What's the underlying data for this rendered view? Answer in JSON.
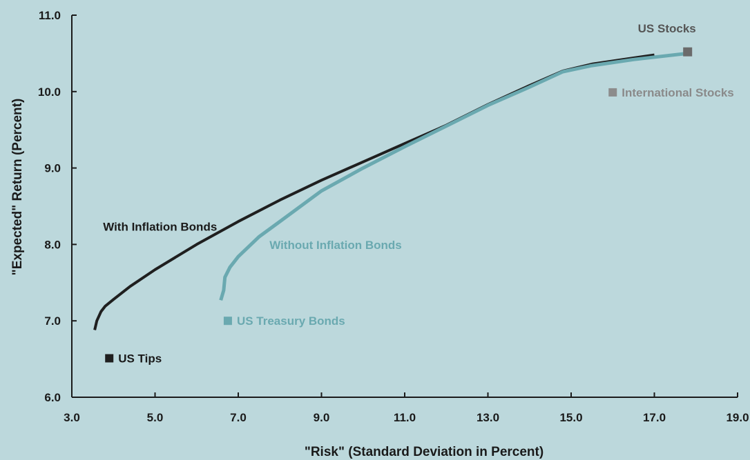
{
  "colors": {
    "background": "#bcd8dc",
    "with_inflation": "#1f1f1f",
    "without_inflation": "#6aa9b0",
    "us_stocks": "#6b6b6b",
    "international_stocks": "#8c8c8c",
    "label_with": "#1a1a1a",
    "label_without": "#6aa9b0",
    "label_us_stocks": "#555555",
    "label_international": "#8a8a8a",
    "label_treasury": "#6aa9b0",
    "label_tips": "#1a1a1a",
    "axis": "#1a1a1a"
  },
  "chart_data": {
    "type": "line",
    "xlabel": "\"Risk\" (Standard Deviation in Percent)",
    "ylabel": "\"Expected\" Return (Percent)",
    "xlim": [
      3.0,
      19.0
    ],
    "ylim": [
      6.0,
      11.0
    ],
    "xticks": [
      "3.0",
      "5.0",
      "7.0",
      "9.0",
      "11.0",
      "13.0",
      "15.0",
      "17.0",
      "19.0"
    ],
    "yticks": [
      "6.0",
      "7.0",
      "8.0",
      "9.0",
      "10.0",
      "11.0"
    ],
    "grid": false,
    "series": [
      {
        "name": "With Inflation Bonds",
        "color_key": "with_inflation",
        "points": [
          [
            3.55,
            6.88
          ],
          [
            3.6,
            7.0
          ],
          [
            3.7,
            7.12
          ],
          [
            3.8,
            7.19
          ],
          [
            4.0,
            7.28
          ],
          [
            4.4,
            7.45
          ],
          [
            5.0,
            7.67
          ],
          [
            6.0,
            8.0
          ],
          [
            7.0,
            8.3
          ],
          [
            8.0,
            8.58
          ],
          [
            9.0,
            8.84
          ],
          [
            10.0,
            9.08
          ],
          [
            11.0,
            9.32
          ],
          [
            12.0,
            9.56
          ],
          [
            13.0,
            9.83
          ],
          [
            14.0,
            10.08
          ],
          [
            14.8,
            10.27
          ],
          [
            15.5,
            10.36
          ],
          [
            16.5,
            10.44
          ],
          [
            17.0,
            10.48
          ]
        ]
      },
      {
        "name": "Without Inflation Bonds",
        "color_key": "without_inflation",
        "points": [
          [
            6.58,
            7.27
          ],
          [
            6.65,
            7.4
          ],
          [
            6.68,
            7.57
          ],
          [
            6.8,
            7.7
          ],
          [
            7.0,
            7.84
          ],
          [
            7.5,
            8.1
          ],
          [
            8.0,
            8.3
          ],
          [
            9.0,
            8.7
          ],
          [
            10.0,
            9.0
          ],
          [
            11.0,
            9.28
          ],
          [
            12.0,
            9.55
          ],
          [
            13.0,
            9.82
          ],
          [
            14.0,
            10.06
          ],
          [
            14.8,
            10.26
          ],
          [
            15.5,
            10.34
          ],
          [
            16.5,
            10.42
          ],
          [
            17.8,
            10.5
          ]
        ]
      }
    ],
    "assets": [
      {
        "label": "US Stocks",
        "x": 17.8,
        "y": 10.52,
        "color_key": "us_stocks",
        "label_color_key": "label_us_stocks"
      },
      {
        "label": "International Stocks",
        "x": 16.0,
        "y": 9.99,
        "color_key": "international_stocks",
        "label_color_key": "label_international"
      },
      {
        "label": "US Treasury Bonds",
        "x": 6.75,
        "y": 7.0,
        "color_key": "without_inflation",
        "label_color_key": "label_treasury"
      },
      {
        "label": "US Tips",
        "x": 3.9,
        "y": 6.51,
        "color_key": "with_inflation",
        "label_color_key": "label_tips"
      }
    ],
    "annotations": [
      {
        "text": "With Inflation Bonds",
        "x": 3.75,
        "y": 8.18,
        "color_key": "label_with"
      },
      {
        "text": "Without Inflation Bonds",
        "x": 7.75,
        "y": 7.94,
        "color_key": "label_without"
      }
    ]
  }
}
